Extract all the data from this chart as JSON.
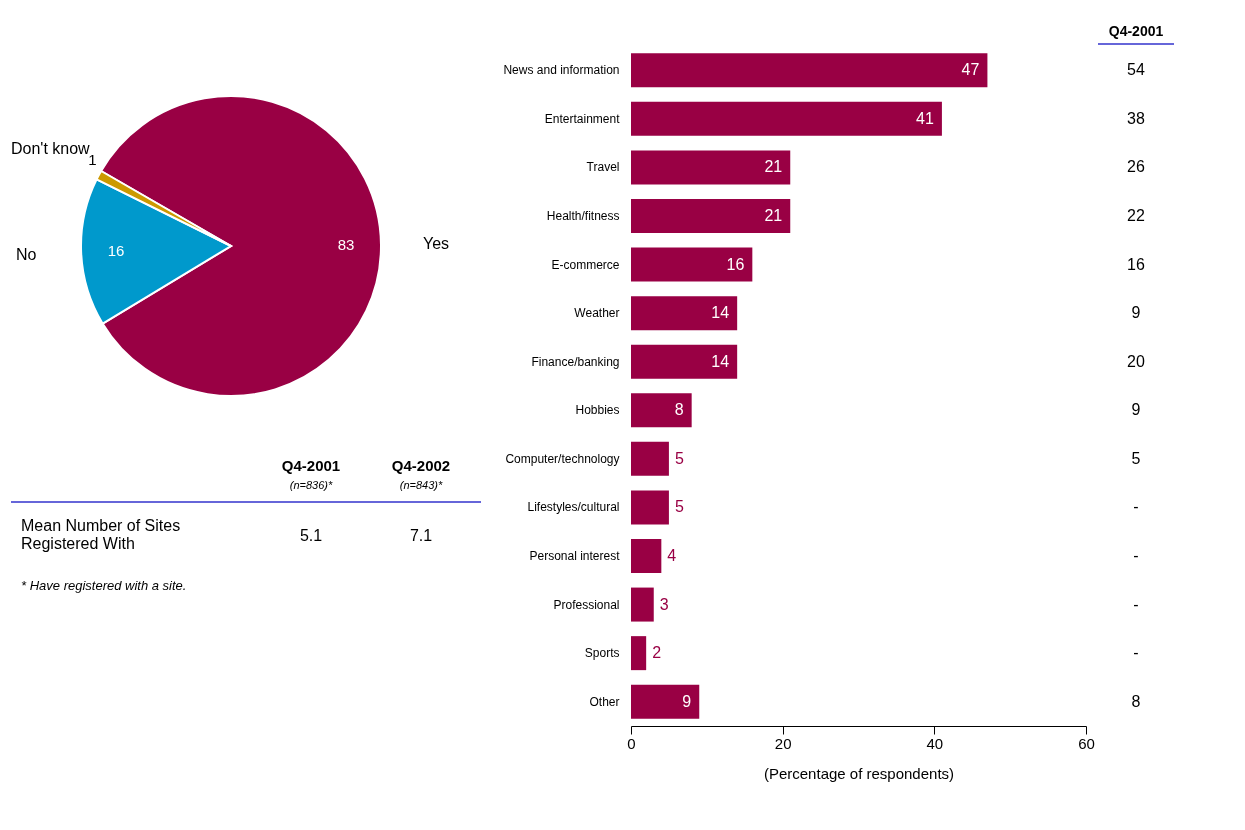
{
  "chart_data": [
    {
      "type": "pie",
      "categories": [
        "Yes",
        "No",
        "Don't know"
      ],
      "values": [
        83,
        16,
        1
      ],
      "colors": [
        "#990044",
        "#0099cc",
        "#cc9900"
      ],
      "data_labels": true
    },
    {
      "type": "other",
      "annotations": [
        "Q4-2001",
        "(n=836)*",
        "Q4-2002",
        "(n=843)*",
        "Mean Number of Sites\nRegistered With",
        "5.1",
        "7.1",
        "*  Have registered with a site."
      ]
    },
    {
      "type": "bar",
      "orientation": "horizontal",
      "color": "#990044",
      "categories": [
        "News and information",
        "Entertainment",
        "Travel",
        "Health/fitness",
        "E-commerce",
        "Weather",
        "Finance/banking",
        "Hobbies",
        "Computer/technology",
        "Lifestyles/cultural",
        "Personal interest",
        "Professional",
        "Sports",
        "Other"
      ],
      "values": [
        47,
        41,
        21,
        21,
        16,
        14,
        14,
        8,
        5,
        5,
        4,
        3,
        2,
        9
      ],
      "xlim": [
        0,
        60
      ],
      "xticks": [
        0,
        20,
        40,
        60
      ],
      "xlabel": "(Percentage of respondents)",
      "grid": false,
      "data_labels": true,
      "annotations": [
        "Q4-2001",
        "54",
        "38",
        "26",
        "22",
        "16",
        "9",
        "20",
        "9",
        "5",
        "-",
        "-",
        "-",
        "-",
        "8"
      ]
    }
  ]
}
